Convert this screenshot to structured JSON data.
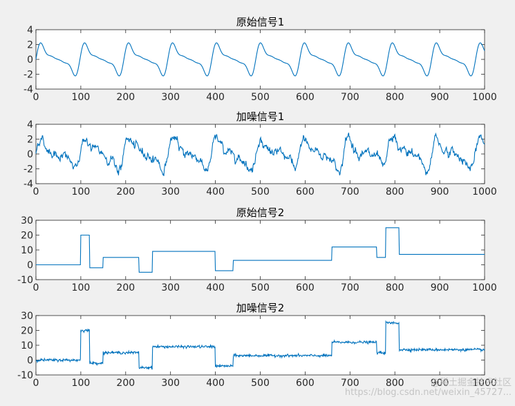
{
  "watermark": "@稀土掘金技术社区",
  "watermark_url": "https://blog.csdn.net/weixin_45727...",
  "colors": {
    "line": "#0072bd",
    "background": "#f0f0f0",
    "axes": "#ffffff"
  },
  "chart_data": [
    {
      "type": "line",
      "title": "原始信号1",
      "signal": "sine_clean",
      "xlim": [
        0,
        1000
      ],
      "ylim": [
        -4,
        4
      ],
      "xticks": [
        0,
        100,
        200,
        300,
        400,
        500,
        600,
        700,
        800,
        900,
        1000
      ],
      "yticks": [
        -4,
        -2,
        0,
        2,
        4
      ],
      "period": 98,
      "amplitude_range": [
        -2.5,
        2.6
      ],
      "color": "#0072bd"
    },
    {
      "type": "line",
      "title": "加噪信号1",
      "signal": "sine_noisy",
      "xlim": [
        0,
        1000
      ],
      "ylim": [
        -4,
        4
      ],
      "xticks": [
        0,
        100,
        200,
        300,
        400,
        500,
        600,
        700,
        800,
        900,
        1000
      ],
      "yticks": [
        -4,
        -2,
        0,
        2,
        4
      ],
      "period": 98,
      "color": "#0072bd"
    },
    {
      "type": "line",
      "title": "原始信号2",
      "signal": "step_clean",
      "xlim": [
        0,
        1000
      ],
      "ylim": [
        -10,
        30
      ],
      "xticks": [
        0,
        100,
        200,
        300,
        400,
        500,
        600,
        700,
        800,
        900,
        1000
      ],
      "yticks": [
        -10,
        0,
        10,
        20,
        30
      ],
      "segments": [
        {
          "x0": 0,
          "x1": 100,
          "y": 0
        },
        {
          "x0": 100,
          "x1": 120,
          "y": 20
        },
        {
          "x0": 120,
          "x1": 150,
          "y": -2
        },
        {
          "x0": 150,
          "x1": 230,
          "y": 5
        },
        {
          "x0": 230,
          "x1": 260,
          "y": -5
        },
        {
          "x0": 260,
          "x1": 400,
          "y": 9
        },
        {
          "x0": 400,
          "x1": 440,
          "y": -4
        },
        {
          "x0": 440,
          "x1": 660,
          "y": 3
        },
        {
          "x0": 660,
          "x1": 760,
          "y": 12
        },
        {
          "x0": 760,
          "x1": 780,
          "y": 5
        },
        {
          "x0": 780,
          "x1": 810,
          "y": 25
        },
        {
          "x0": 810,
          "x1": 1000,
          "y": 7
        }
      ],
      "color": "#0072bd"
    },
    {
      "type": "line",
      "title": "加噪信号2",
      "signal": "step_noisy",
      "xlim": [
        0,
        1000
      ],
      "ylim": [
        -10,
        30
      ],
      "xticks": [
        0,
        100,
        200,
        300,
        400,
        500,
        600,
        700,
        800,
        900,
        1000
      ],
      "yticks": [
        -10,
        0,
        10,
        20,
        30
      ],
      "segments": [
        {
          "x0": 0,
          "x1": 100,
          "y": 0
        },
        {
          "x0": 100,
          "x1": 120,
          "y": 20
        },
        {
          "x0": 120,
          "x1": 150,
          "y": -2
        },
        {
          "x0": 150,
          "x1": 230,
          "y": 5
        },
        {
          "x0": 230,
          "x1": 260,
          "y": -5
        },
        {
          "x0": 260,
          "x1": 400,
          "y": 9
        },
        {
          "x0": 400,
          "x1": 440,
          "y": -4
        },
        {
          "x0": 440,
          "x1": 660,
          "y": 3
        },
        {
          "x0": 660,
          "x1": 760,
          "y": 12
        },
        {
          "x0": 760,
          "x1": 780,
          "y": 5
        },
        {
          "x0": 780,
          "x1": 810,
          "y": 25
        },
        {
          "x0": 810,
          "x1": 1000,
          "y": 7
        }
      ],
      "color": "#0072bd"
    }
  ]
}
